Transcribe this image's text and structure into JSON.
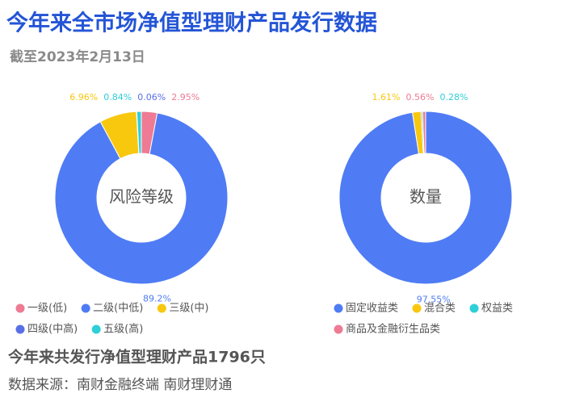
{
  "header": {
    "title": "今年来全市场净值型理财产品发行数据",
    "subtitle": "截至2023年2月13日"
  },
  "chart_data": [
    {
      "type": "donut",
      "center_label": "风险等级",
      "categories": [
        "一级(低)",
        "二级(中低)",
        "三级(中)",
        "四级(中高)",
        "五级(高)"
      ],
      "values": [
        2.95,
        89.2,
        6.96,
        0.06,
        0.84
      ],
      "value_labels": [
        "2.95%",
        "89.2%",
        "6.96%",
        "0.06%",
        "0.84%"
      ],
      "colors": [
        "#ee7a93",
        "#4f7cf5",
        "#f8c80f",
        "#5a6fe6",
        "#2fcfd8"
      ]
    },
    {
      "type": "donut",
      "center_label": "数量",
      "categories": [
        "固定收益类",
        "混合类",
        "权益类",
        "商品及金融衍生品类"
      ],
      "values": [
        97.55,
        1.61,
        0.28,
        0.56
      ],
      "value_labels": [
        "97.55%",
        "1.61%",
        "0.28%",
        "0.56%"
      ],
      "colors": [
        "#4f7cf5",
        "#f8c80f",
        "#2fcfd8",
        "#ee7a93"
      ]
    }
  ],
  "footer": {
    "summary": "今年来共发行净值型理财产品1796只",
    "source": "数据来源：南财金融终端 南财理财通"
  }
}
